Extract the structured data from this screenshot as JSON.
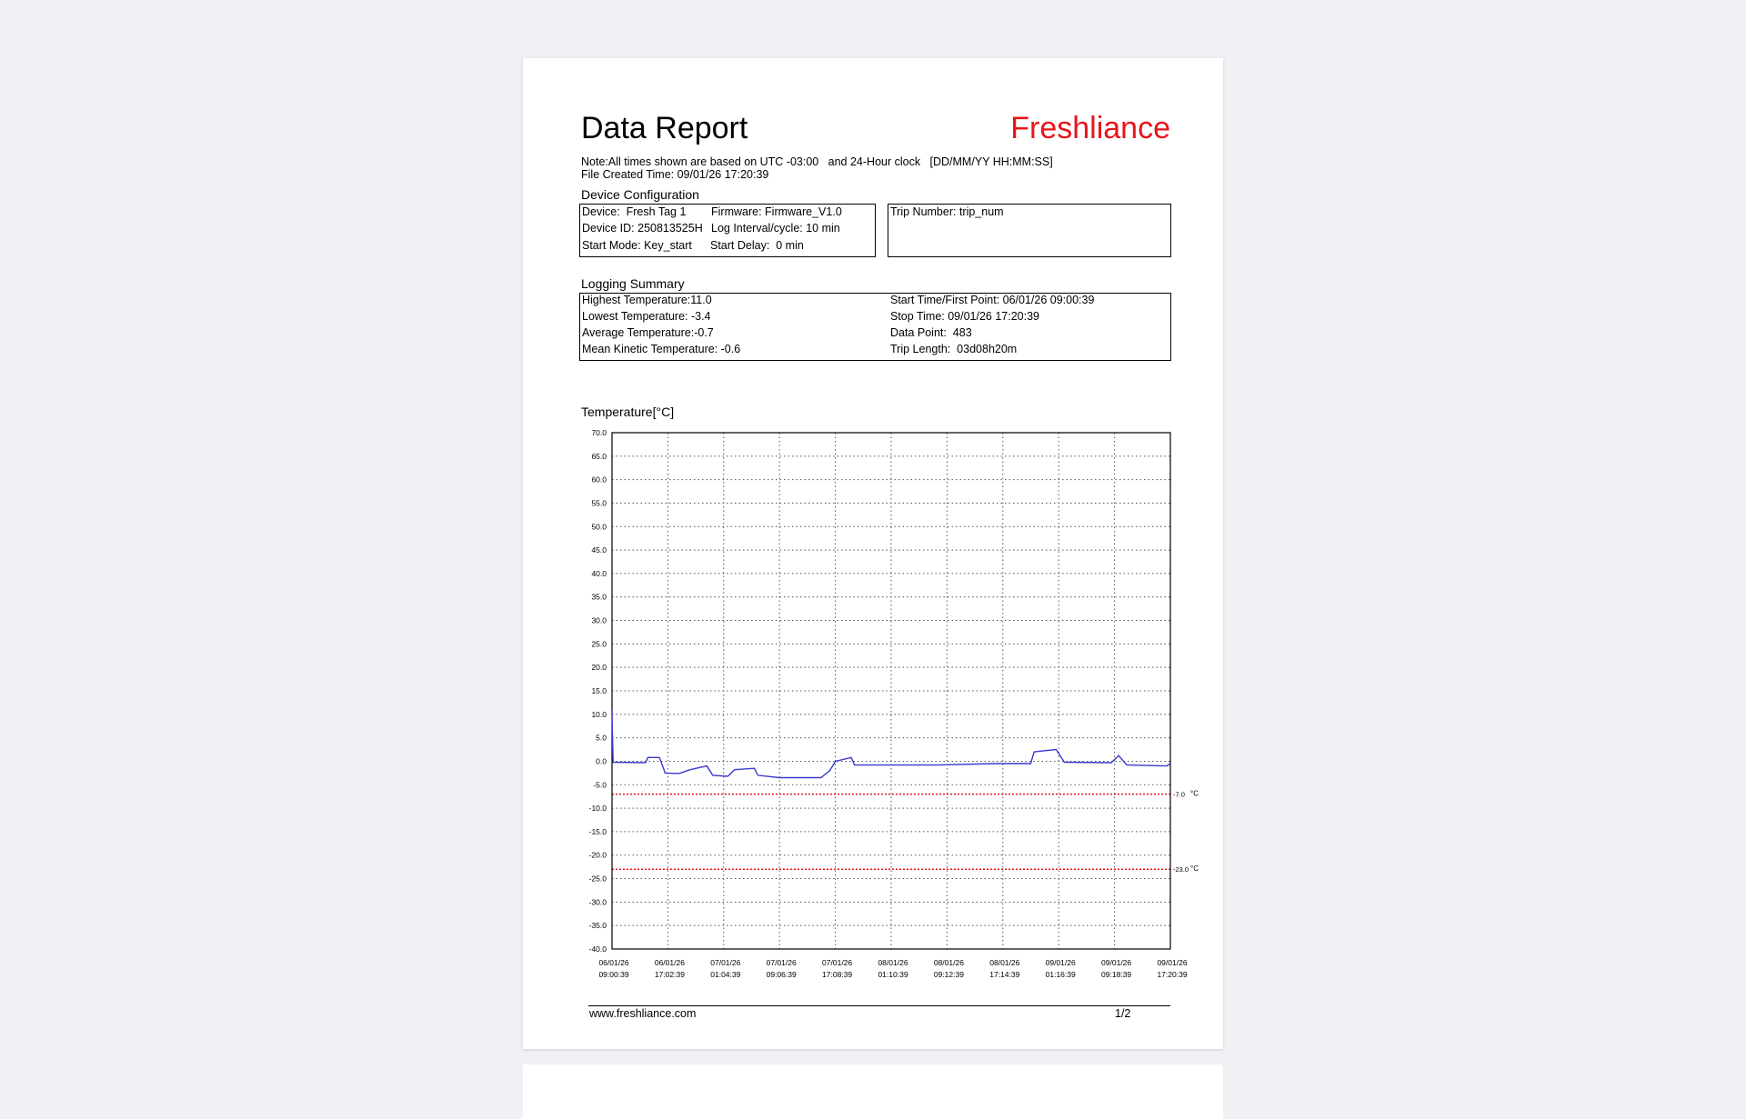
{
  "title": "Data Report",
  "brand": "Freshliance",
  "brand_color": "#e8141b",
  "note": "Note:All times shown are based on UTC -03:00   and 24-Hour clock   [DD/MM/YY HH:MM:SS]",
  "file_created": "File Created Time: 09/01/26 17:20:39",
  "device_config": {
    "heading": "Device Configuration",
    "device": "Device:  Fresh Tag 1",
    "firmware": "Firmware: Firmware_V1.0",
    "device_id": "Device ID: 250813525H",
    "log_interval": "Log Interval/cycle: 10 min",
    "start_mode": "Start Mode: Key_start",
    "start_delay": "Start Delay:  0 min",
    "trip_number": "Trip Number: trip_num"
  },
  "logging_summary": {
    "heading": "Logging Summary",
    "highest": "Highest Temperature:11.0",
    "lowest": "Lowest Temperature: -3.4",
    "average": "Average Temperature:-0.7",
    "mkt": "Mean Kinetic Temperature: -0.6",
    "start_time": "Start Time/First Point: 06/01/26 09:00:39",
    "stop_time": "Stop Time: 09/01/26 17:20:39",
    "data_points": "Data Point:  483",
    "trip_length": "Trip Length:  03d08h20m"
  },
  "chart_data": {
    "type": "line",
    "ylabel": "Temperature[°C]",
    "ylim": [
      -40,
      70
    ],
    "yticks": [
      "70.0",
      "65.0",
      "60.0",
      "55.0",
      "50.0",
      "45.0",
      "40.0",
      "35.0",
      "30.0",
      "25.0",
      "20.0",
      "15.0",
      "10.0",
      "5.0",
      "0.0",
      "-5.0",
      "-10.0",
      "-15.0",
      "-20.0",
      "-25.0",
      "-30.0",
      "-35.0",
      "-40.0"
    ],
    "xlim": [
      "06/01/26 09:00:39",
      "09/01/26 17:20:39"
    ],
    "xticks": [
      [
        "06/01/26",
        "09:00:39"
      ],
      [
        "06/01/26",
        "17:02:39"
      ],
      [
        "07/01/26",
        "01:04:39"
      ],
      [
        "07/01/26",
        "09:06:39"
      ],
      [
        "07/01/26",
        "17:08:39"
      ],
      [
        "08/01/26",
        "01:10:39"
      ],
      [
        "08/01/26",
        "09:12:39"
      ],
      [
        "08/01/26",
        "17:14:39"
      ],
      [
        "09/01/26",
        "01:16:39"
      ],
      [
        "09/01/26",
        "09:18:39"
      ],
      [
        "09/01/26",
        "17:20:39"
      ]
    ],
    "grid": true,
    "line_color": "#3a3acf",
    "threshold_color": "#e8141b",
    "thresholds": [
      {
        "value": -7.0,
        "label": "-7.0",
        "unit": "°C"
      },
      {
        "value": -23.0,
        "label": "-23.0",
        "unit": "°C"
      }
    ],
    "series": [
      {
        "points": [
          [
            "06/01/26 09:00",
            11.0
          ],
          [
            "06/01/26 09:10",
            -0.2
          ],
          [
            "06/01/26 13:50",
            -0.3
          ],
          [
            "06/01/26 14:10",
            0.8
          ],
          [
            "06/01/26 15:50",
            0.8
          ],
          [
            "06/01/26 16:40",
            -2.5
          ],
          [
            "06/01/26 18:40",
            -2.6
          ],
          [
            "06/01/26 20:15",
            -1.8
          ],
          [
            "06/01/26 22:40",
            -1.0
          ],
          [
            "06/01/26 23:30",
            -3.0
          ],
          [
            "07/01/26 01:40",
            -3.2
          ],
          [
            "07/01/26 02:40",
            -1.8
          ],
          [
            "07/01/26 05:30",
            -1.5
          ],
          [
            "07/01/26 06:00",
            -3.0
          ],
          [
            "07/01/26 09:05",
            -3.5
          ],
          [
            "07/01/26 15:05",
            -3.5
          ],
          [
            "07/01/26 16:20",
            -2.0
          ],
          [
            "07/01/26 17:10",
            0.0
          ],
          [
            "07/01/26 19:25",
            0.8
          ],
          [
            "07/01/26 19:55",
            -0.8
          ],
          [
            "08/01/26 07:35",
            -0.8
          ],
          [
            "08/01/26 16:25",
            -0.5
          ],
          [
            "08/01/26 21:15",
            -0.5
          ],
          [
            "08/01/26 21:45",
            2.0
          ],
          [
            "09/01/26 00:55",
            2.5
          ],
          [
            "09/01/26 02:05",
            -0.2
          ],
          [
            "09/01/26 08:50",
            -0.3
          ],
          [
            "09/01/26 09:55",
            1.2
          ],
          [
            "09/01/26 11:05",
            -0.8
          ],
          [
            "09/01/26 16:50",
            -1.0
          ],
          [
            "09/01/26 17:20",
            -0.5
          ]
        ]
      }
    ]
  },
  "footer": {
    "url": "www.freshliance.com",
    "page": "1/2"
  }
}
